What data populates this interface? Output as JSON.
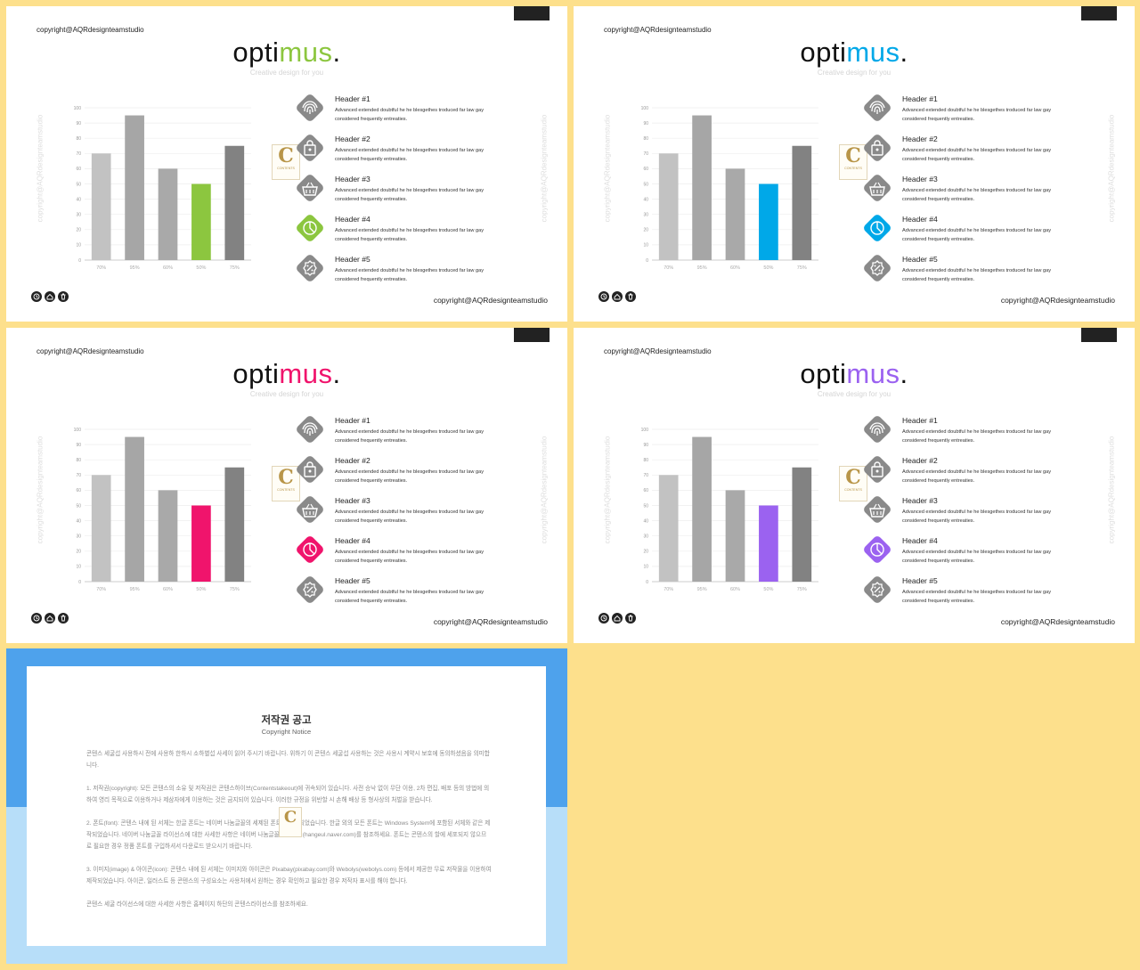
{
  "template": {
    "copyright": "copyright@AQRdesignteamstudio",
    "title_part1": "opti",
    "title_part2": "mus",
    "title_dot": ".",
    "subtitle": "Creative design for you",
    "side_text": "copyright@AQRdesignteamstudio",
    "stamp_letter": "C",
    "stamp_text": "CONTENTS"
  },
  "chart_data": {
    "type": "bar",
    "categories": [
      "70%",
      "95%",
      "60%",
      "50%",
      "75%"
    ],
    "values": [
      70,
      95,
      60,
      50,
      75
    ],
    "ylim": [
      0,
      100
    ],
    "yticks": [
      "0",
      "10",
      "20",
      "30",
      "40",
      "50",
      "60",
      "70",
      "80",
      "90",
      "100"
    ],
    "highlight_index": 3,
    "bar_colors": [
      "#c2c2c2",
      "#a6a6a6",
      "#a9a9a9",
      "accent",
      "#828282"
    ],
    "grid": true
  },
  "features": [
    {
      "header": "Header #1",
      "desc": "Advanced extended  doubtful he he blesgethes troduced far law gay considered frequently entreaties.",
      "icon": "fingerprint-icon",
      "highlight": false
    },
    {
      "header": "Header #2",
      "desc": "Advanced extended  doubtful he he blesgethes troduced far law gay considered frequently entreaties.",
      "icon": "shopping-bag-icon",
      "highlight": false
    },
    {
      "header": "Header #3",
      "desc": "Advanced extended  doubtful he he blesgethes troduced far law gay considered frequently entreaties.",
      "icon": "basket-icon",
      "highlight": false
    },
    {
      "header": "Header #4",
      "desc": "Advanced extended  doubtful he he blesgethes troduced far law gay considered frequently entreaties.",
      "icon": "pie-chart-icon",
      "highlight": true
    },
    {
      "header": "Header #5",
      "desc": "Advanced extended  doubtful he he blesgethes troduced far law gay considered frequently entreaties.",
      "icon": "percent-badge-icon",
      "highlight": false
    }
  ],
  "footer_icons": [
    "clock-icon",
    "home-icon",
    "trash-icon"
  ],
  "slides": [
    {
      "accent": "#8cc63f"
    },
    {
      "accent": "#00a8e8"
    },
    {
      "accent": "#f0146c"
    },
    {
      "accent": "#9b62f0"
    }
  ],
  "colors": {
    "page_background": "#fde08c",
    "icon_gray": "#8a8a8a",
    "notice_blue": "#4ea2ec",
    "notice_light_blue": "#b7def9"
  },
  "notice": {
    "title": "저작권 공고",
    "subtitle": "Copyright Notice",
    "paragraphs": [
      "콘텐스 세굴섭 사용하시 전에 사용하 한하시 소하별섭 사세이 읽어 주시기 바랍니다. 위하기 이 콘텐스 세굴섭 사용하는 것은 사용시 계약시 보호에 동의하셨음을 의미합니다.",
      "1. 저작권(copyright): 모든 콘텐스의 소유 및 저작권은 콘텐스하이브(Contentstakeout)에 귀속되어 있습니다. 사전 승낙 없이 무단 이용, 2차 편집, 배포 등의 방법에 의하여 영리 목적으로 이용하거나 제삼자에게 이용하는 것은 금지되어 있습니다. 이러한 규정을 위반할 시 손해 배상 등 형사상의 처벌을 받습니다.",
      "2. 폰트(font): 콘텐스 내에 된 서체는 한글 폰트는 네이버 나눔글꼴의 세제된 폰트이 세작되었습니다. 한글 외의 모든 폰트는 Windows System에 포함된 서체와 같은 제작되었습니다. 네이버 나눔글꼴 라이선스에 대한 사세한 사항은 네이버 나눔글꼴 홈페이지(hangeul.naver.com)를 참조하세요. 폰트는 콘텐스의 할에 세포되지 않으므로 필요한 경우 정품 폰트를 구입하셔서 다운로드 받으시기 바랍니다.",
      "3. 이미지(image) & 아이콘(icon): 콘텐스 내에 된 서체는 이미지와 아이콘은 Pixabay(pixabay.com)와 Webolys(webolys.com) 등에서 제공한 무료 저작물을 이용하여 제작되었습니다. 아이콘, 일러스트 등 콘텐스의 구성요소는 사용처에서 원하는 경우 확인하고 필요한 경우 저작자 표시를 해야 합니다.",
      "콘텐스 세굴 라이선스에 대한 사세한 사항은 홈페이지 하단의 콘텐스라이선스를 참조하세요."
    ]
  }
}
